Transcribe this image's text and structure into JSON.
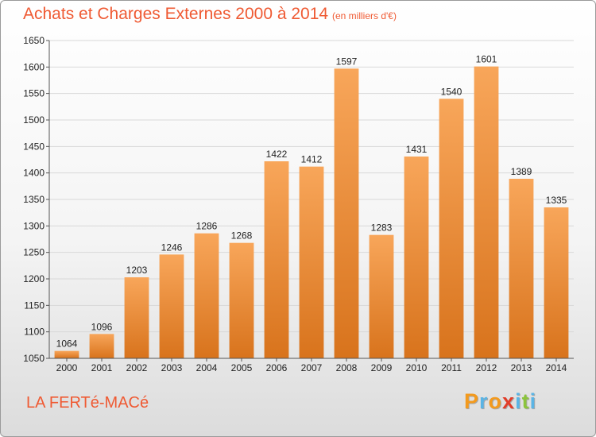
{
  "title": "Achats et Charges Externes 2000 à 2014",
  "subtitle": "(en milliers d'€)",
  "city": "LA FERTé-MACé",
  "logo": {
    "letters": [
      "P",
      "r",
      "o",
      "x",
      "i",
      "t",
      "i"
    ],
    "colors": [
      "#f39a1e",
      "#5ab4e5",
      "#f39a1e",
      "#e23c28",
      "#5ab4e5",
      "#8cc43c",
      "#5ab4e5"
    ]
  },
  "colors": {
    "accent": "#ef5a33",
    "bar_top": "#f8a65a",
    "bar_bottom": "#d8731c",
    "grid": "#d8d8d8"
  },
  "chart_data": {
    "type": "bar",
    "title": "Achats et Charges Externes 2000 à 2014",
    "subtitle": "(en milliers d'€)",
    "xlabel": "",
    "ylabel": "",
    "categories": [
      "2000",
      "2001",
      "2002",
      "2003",
      "2004",
      "2005",
      "2006",
      "2007",
      "2008",
      "2009",
      "2010",
      "2011",
      "2012",
      "2013",
      "2014"
    ],
    "values": [
      1064,
      1096,
      1203,
      1246,
      1286,
      1268,
      1422,
      1412,
      1597,
      1283,
      1431,
      1540,
      1601,
      1389,
      1335
    ],
    "ylim": [
      1050,
      1650
    ],
    "yticks": [
      1050,
      1100,
      1150,
      1200,
      1250,
      1300,
      1350,
      1400,
      1450,
      1500,
      1550,
      1600,
      1650
    ],
    "grid": true,
    "legend": "none"
  }
}
